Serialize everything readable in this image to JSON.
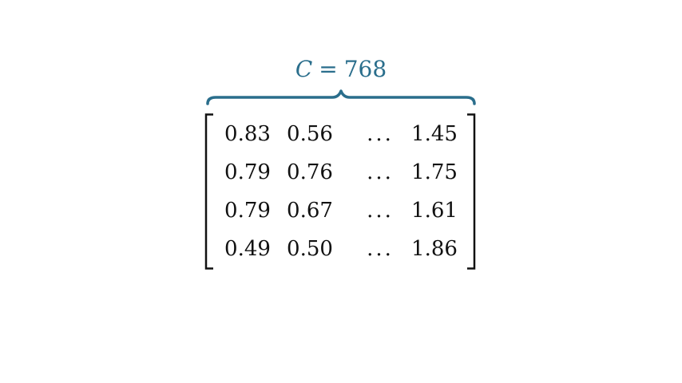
{
  "header": {
    "variable": "C",
    "operator": "=",
    "value": "768",
    "color": "#2a6e8c"
  },
  "matrix": {
    "rows": [
      [
        "0.83",
        "0.56",
        "...",
        "1.45"
      ],
      [
        "0.79",
        "0.76",
        "...",
        "1.75"
      ],
      [
        "0.79",
        "0.67",
        "...",
        "1.61"
      ],
      [
        "0.49",
        "0.50",
        "...",
        "1.86"
      ]
    ]
  }
}
